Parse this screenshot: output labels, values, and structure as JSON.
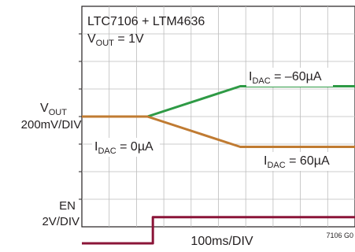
{
  "chart_data": {
    "type": "line",
    "title_line1": "LTC7106 + LTM4636",
    "title_line2": {
      "main": "V",
      "sub": "OUT",
      "rest": " = 1V"
    },
    "xlabel": "100ms/DIV",
    "figure_id": "7106 G0",
    "grid": true,
    "x_divisions": 10,
    "y_divisions": 8,
    "channels": [
      {
        "label_main": "V",
        "label_sub": "OUT",
        "scale": "200mV/DIV"
      },
      {
        "label_main": "EN",
        "label_sub": "",
        "scale": "2V/DIV"
      }
    ],
    "annotations": [
      {
        "main": "I",
        "sub": "DAC",
        "rest": " = –60µA"
      },
      {
        "main": "I",
        "sub": "DAC",
        "rest": " = 0µA"
      },
      {
        "main": "I",
        "sub": "DAC",
        "rest": " = 60µA"
      }
    ],
    "series": [
      {
        "color": "#2e9a45",
        "x": [
          0,
          2.4,
          5.8,
          10
        ],
        "y": [
          0,
          0,
          1.1,
          1.1
        ]
      },
      {
        "color": "#c07b32",
        "x": [
          0,
          2.4,
          5.8,
          10
        ],
        "y": [
          0,
          0,
          -1.1,
          -1.1
        ]
      },
      {
        "color": "#8b1538",
        "x": [
          0,
          2.6,
          2.6,
          10
        ],
        "y": [
          -4.6,
          -4.6,
          -3.65,
          -3.65
        ]
      }
    ]
  }
}
